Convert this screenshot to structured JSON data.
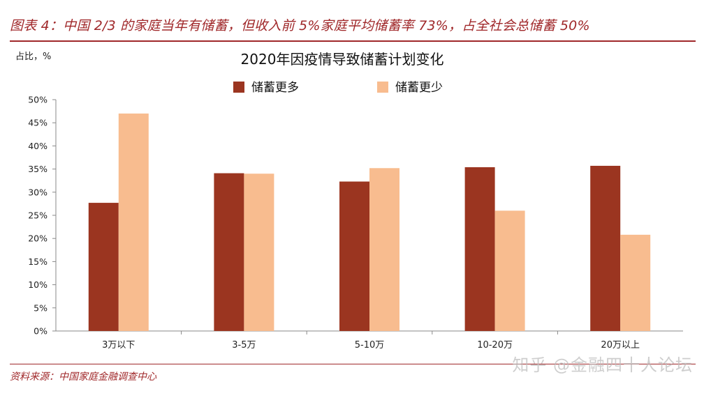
{
  "figure_title": "图表 4：中国 2/3 的家庭当年有储蓄，但收入前 5%家庭平均储蓄率 73%，占全社会总储蓄 50%",
  "unit_label": "占比，%",
  "source": "资料来源：中国家庭金融调查中心",
  "watermark": "知乎 @金融四十人论坛",
  "chart_data": {
    "type": "bar",
    "title": "2020年因疫情导致储蓄计划变化",
    "xlabel": "",
    "ylabel": "",
    "categories": [
      "3万以下",
      "3-5万",
      "5-10万",
      "10-20万",
      "20万以上"
    ],
    "series": [
      {
        "name": "储蓄更多",
        "color": "#9b3520",
        "values": [
          27.7,
          34.1,
          32.3,
          35.4,
          35.7
        ]
      },
      {
        "name": "储蓄更少",
        "color": "#f8bc8f",
        "values": [
          47.0,
          34.0,
          35.2,
          26.0,
          20.8
        ]
      }
    ],
    "ylim": [
      0,
      50
    ],
    "yticks": [
      "0%",
      "5%",
      "10%",
      "15%",
      "20%",
      "25%",
      "30%",
      "35%",
      "40%",
      "45%",
      "50%"
    ],
    "grid": false,
    "legend_position": "top"
  }
}
